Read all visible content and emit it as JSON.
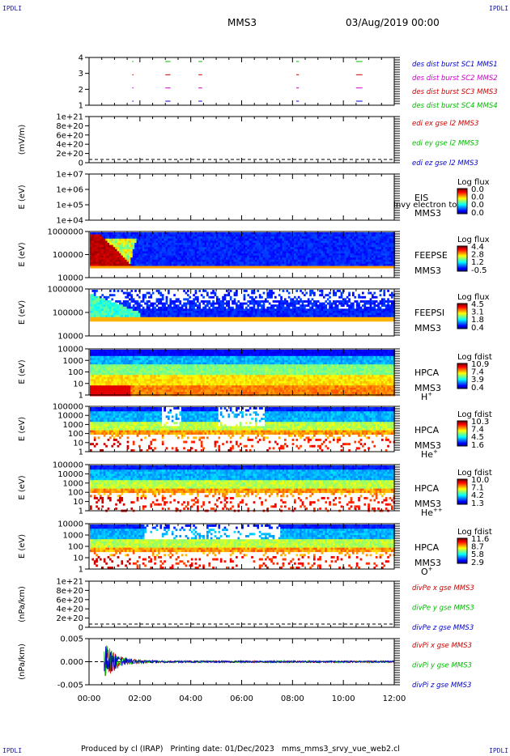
{
  "header": {
    "corner_label": "IPDLI",
    "title": "MMS3",
    "date": "03/Aug/2019 00:00"
  },
  "footer": {
    "text": "Produced by cl (IRAP)   Printing date: 01/Dec/2023   mms_mms3_srvy_vue_web2.cl"
  },
  "chart_data": {
    "type": "heatmap",
    "x_axis": {
      "range": [
        "00:00",
        "12:00"
      ],
      "ticks": [
        "00:00",
        "02:00",
        "04:00",
        "06:00",
        "08:00",
        "10:00",
        "12:00"
      ]
    },
    "panels": [
      {
        "id": "burst",
        "type": "scatter",
        "ylabel": "",
        "yticks": [
          "4",
          "3",
          "2",
          "1"
        ],
        "legend": [
          {
            "text": "des dist burst SC1 MMS1",
            "color": "#0000cc"
          },
          {
            "text": "des dist burst SC2 MMS2",
            "color": "#cc00cc"
          },
          {
            "text": "des dist burst SC3 MMS3",
            "color": "#cc0000"
          },
          {
            "text": "des dist burst SC4 MMS4",
            "color": "#00bb00"
          }
        ],
        "intervals_hours": [
          [
            1.7,
            1.75
          ],
          [
            3.0,
            3.2
          ],
          [
            4.3,
            4.45
          ],
          [
            8.15,
            8.25
          ],
          [
            10.5,
            10.75
          ]
        ]
      },
      {
        "id": "edi",
        "type": "line",
        "ylabel": "(mV/m)",
        "yticks": [
          "1e+21",
          "8e+20",
          "6e+20",
          "4e+20",
          "2e+20",
          "0"
        ],
        "legend": [
          {
            "text": "edi ex gse l2 MMS3",
            "color": "#cc0000"
          },
          {
            "text": "edi ey gse l2 MMS3",
            "color": "#00bb00"
          },
          {
            "text": "edi ez gse l2 MMS3",
            "color": "#0000cc"
          }
        ]
      },
      {
        "id": "eis",
        "type": "heatmap",
        "ylabel": "E (eV)",
        "yticks": [
          "1e+07",
          "1e+06",
          "1e+05",
          "1e+04"
        ],
        "instrument": "EIS",
        "spacecraft": "MMS3",
        "overlay": "Invy electron to",
        "colorbar": {
          "title": "Log flux",
          "labels": [
            "0.0",
            "0.0",
            "0.0",
            "0.0"
          ]
        }
      },
      {
        "id": "feepse",
        "type": "heatmap",
        "ylabel": "E (eV)",
        "yticks": [
          "1000000",
          "100000",
          "10000"
        ],
        "instrument": "FEEPSE",
        "spacecraft": "MMS3",
        "colorbar": {
          "title": "Log flux",
          "labels": [
            "4.4",
            "2.8",
            "1.2",
            "-0.5"
          ]
        }
      },
      {
        "id": "feepsi",
        "type": "heatmap",
        "ylabel": "E (eV)",
        "yticks": [
          "1000000",
          "100000",
          "10000"
        ],
        "instrument": "FEEPSI",
        "spacecraft": "MMS3",
        "colorbar": {
          "title": "Log flux",
          "labels": [
            "4.5",
            "3.1",
            "1.8",
            "0.4"
          ]
        }
      },
      {
        "id": "hpca_h",
        "type": "heatmap",
        "ylabel": "E (eV)",
        "yticks": [
          "10000",
          "1000",
          "100",
          "10",
          "1"
        ],
        "instrument": "HPCA",
        "spacecraft": "MMS3",
        "species": "H",
        "charge": "+",
        "colorbar": {
          "title": "Log fdist",
          "labels": [
            "10.9",
            "7.4",
            "3.9",
            "0.4"
          ]
        }
      },
      {
        "id": "hpca_he",
        "type": "heatmap",
        "ylabel": "E (eV)",
        "yticks": [
          "100000",
          "10000",
          "1000",
          "100",
          "10",
          "1"
        ],
        "instrument": "HPCA",
        "spacecraft": "MMS3",
        "species": "He",
        "charge": "+",
        "colorbar": {
          "title": "Log fdist",
          "labels": [
            "10.3",
            "7.4",
            "4.5",
            "1.6"
          ]
        }
      },
      {
        "id": "hpca_hepp",
        "type": "heatmap",
        "ylabel": "E (eV)",
        "yticks": [
          "100000",
          "10000",
          "1000",
          "100",
          "10",
          "1"
        ],
        "instrument": "HPCA",
        "spacecraft": "MMS3",
        "species": "He",
        "charge": "++",
        "colorbar": {
          "title": "Log fdist",
          "labels": [
            "10.0",
            "7.1",
            "4.2",
            "1.3"
          ]
        }
      },
      {
        "id": "hpca_o",
        "type": "heatmap",
        "ylabel": "E (eV)",
        "yticks": [
          "10000",
          "1000",
          "100",
          "10",
          "1"
        ],
        "instrument": "HPCA",
        "spacecraft": "MMS3",
        "species": "O",
        "charge": "+",
        "colorbar": {
          "title": "Log fdist",
          "labels": [
            "11.6",
            "8.7",
            "5.8",
            "2.9"
          ]
        }
      },
      {
        "id": "divpe",
        "type": "line",
        "ylabel": "(nPa/km)",
        "yticks": [
          "1e+21",
          "8e+20",
          "6e+20",
          "4e+20",
          "2e+20",
          "0"
        ],
        "legend": [
          {
            "text": "divPe x gse MMS3",
            "color": "#cc0000"
          },
          {
            "text": "divPe y gse MMS3",
            "color": "#00bb00"
          },
          {
            "text": "divPe z gse MMS3",
            "color": "#0000cc"
          }
        ]
      },
      {
        "id": "divpi",
        "type": "line",
        "ylabel": "(nPa/km)",
        "yticks": [
          "0.005",
          "0.000",
          "-0.005"
        ],
        "legend": [
          {
            "text": "divPi x gse MMS3",
            "color": "#cc0000"
          },
          {
            "text": "divPi y gse MMS3",
            "color": "#00bb00"
          },
          {
            "text": "divPi z gse MMS3",
            "color": "#0000cc"
          }
        ]
      }
    ]
  }
}
